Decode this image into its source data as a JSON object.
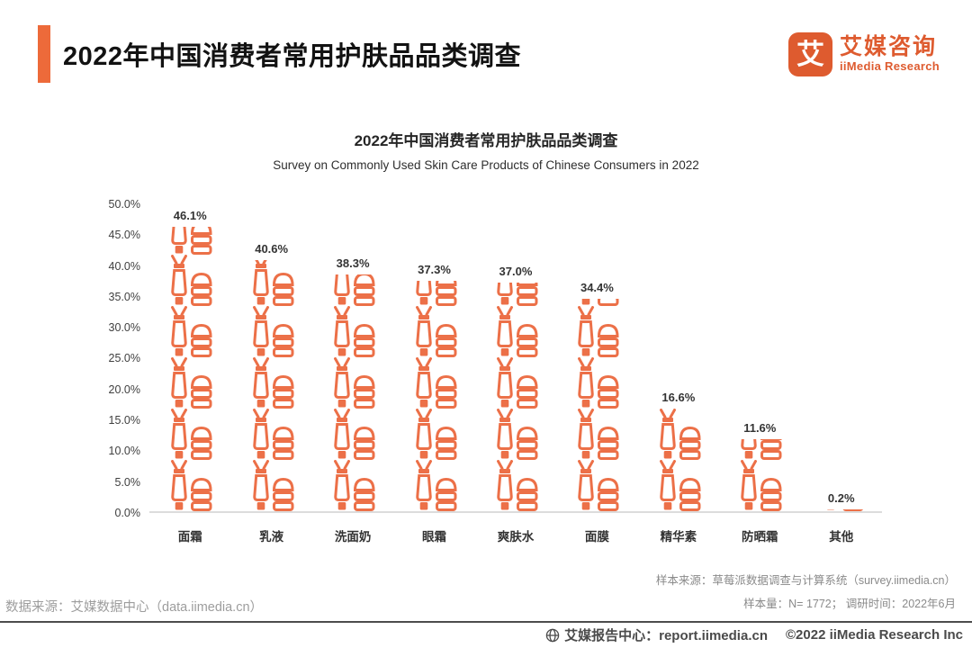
{
  "header": {
    "title": "2022年中国消费者常用护肤品品类调查",
    "logo": {
      "glyph": "艾",
      "name_cn": "艾媒咨询",
      "name_en": "iiMedia Research"
    }
  },
  "chart": {
    "title": "2022年中国消费者常用护肤品品类调查",
    "subtitle": "Survey on Commonly Used Skin Care Products of Chinese Consumers in 2022",
    "y_ticks": [
      "50.0%",
      "45.0%",
      "40.0%",
      "35.0%",
      "30.0%",
      "25.0%",
      "20.0%",
      "15.0%",
      "10.0%",
      "5.0%",
      "0.0%"
    ]
  },
  "chart_data": {
    "type": "bar",
    "subtype": "pictograph",
    "icon": "cosmetic-tube-and-jar-pictogram",
    "title": "2022年中国消费者常用护肤品品类调查",
    "subtitle": "Survey on Commonly Used Skin Care Products of Chinese Consumers in 2022",
    "categories": [
      "面霜",
      "乳液",
      "洗面奶",
      "眼霜",
      "爽肤水",
      "面膜",
      "精华素",
      "防晒霜",
      "其他"
    ],
    "values": [
      46.1,
      40.6,
      38.3,
      37.3,
      37.0,
      34.4,
      16.6,
      11.6,
      0.2
    ],
    "labels": [
      "46.1%",
      "40.6%",
      "38.3%",
      "37.3%",
      "37.0%",
      "34.4%",
      "16.6%",
      "11.6%",
      "0.2%"
    ],
    "unit": "%",
    "xlabel": "",
    "ylabel": "",
    "ylim": [
      0,
      50
    ],
    "y_tick_step": 5,
    "grid": false,
    "legend": false
  },
  "footnotes": {
    "data_source": "数据来源：艾媒数据中心（data.iimedia.cn）",
    "sample_source": "样本来源：草莓派数据调查与计算系统（survey.iimedia.cn）",
    "sample_info": "样本量：N= 1772； 调研时间：2022年6月"
  },
  "bottom_bar": {
    "report_center": "艾媒报告中心：report.iimedia.cn",
    "copyright": "©2022  iiMedia Research Inc"
  },
  "colors": {
    "bar": "#EC7048",
    "accent": "#ED6A3A",
    "logo": "#DE5B2F",
    "axis_text": "#404040",
    "footnote_text": "#8a8a8a",
    "baseline": "#dcdcdc"
  }
}
